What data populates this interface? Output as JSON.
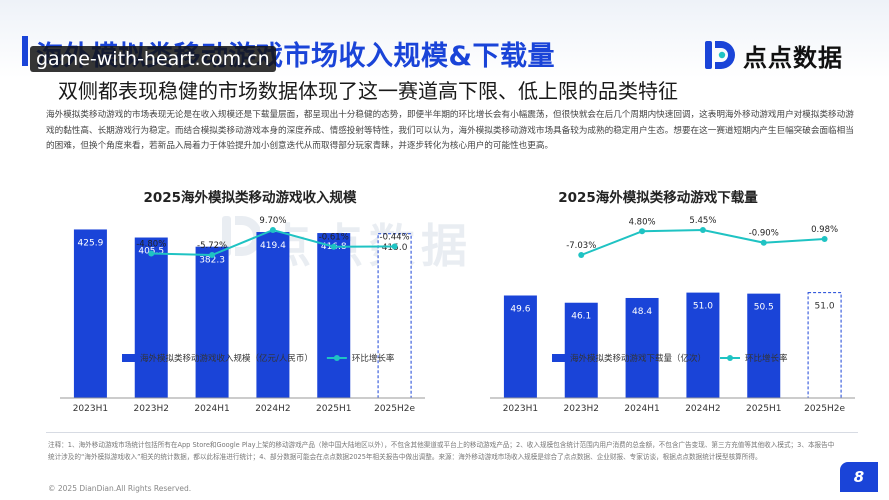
{
  "header": {
    "title": "海外模拟类移动游戏市场收入规模&下载量",
    "subtitle": "双侧都表现稳健的市场数据体现了这一赛道高下限、低上限的品类特征",
    "watermark_url": "game-with-heart.com.cn"
  },
  "brand": {
    "name": "点点数据",
    "watermark": "点点数据"
  },
  "intro_text": "海外模拟类移动游戏的市场表现无论是在收入规模还是下载量层面，都呈现出十分稳健的态势，即便半年期的环比增长会有小幅震荡，但很快就会在后几个周期内快速回调，这表明海外移动游戏用户对模拟类移动游戏的黏性高、长期游戏行为稳定。而结合模拟类移动游戏本身的深度养成、情感投射等特性，我们可以认为，海外模拟类移动游戏市场具备较为成熟的稳定用户生态。想要在这一赛道短期内产生巨幅突破会面临相当的困难，但换个角度来看，若新品入局着力于体验提升加小创意迭代从而取得部分玩家青睐，并逐步转化为核心用户的可能性也更高。",
  "chart_data": [
    {
      "type": "bar",
      "title": "2025海外模拟类移动游戏收入规模",
      "categories": [
        "2023H1",
        "2023H2",
        "2024H1",
        "2024H2",
        "2025H1",
        "2025H2e"
      ],
      "series": [
        {
          "name": "海外模拟类移动游戏收入规模（亿元/人民币）",
          "values": [
            425.9,
            405.5,
            382.3,
            419.4,
            416.8,
            415.0
          ],
          "estimated_last": true,
          "color": "#1a44d8"
        },
        {
          "name": "环比增长率",
          "type": "line",
          "values": [
            null,
            -4.8,
            -5.72,
            9.7,
            -0.61,
            -0.44
          ],
          "labels": [
            "",
            "-4.80%",
            "-5.72%",
            "9.70%",
            "-0.61%",
            "-0.44%"
          ],
          "color": "#1fc3c3"
        }
      ],
      "ylim": [
        0,
        470
      ],
      "legend": "bottom"
    },
    {
      "type": "bar",
      "title": "2025海外模拟类移动游戏下载量",
      "categories": [
        "2023H1",
        "2023H2",
        "2024H1",
        "2024H2",
        "2025H1",
        "2025H2e"
      ],
      "series": [
        {
          "name": "海外模拟类移动游戏下载量（亿次）",
          "values": [
            49.6,
            46.1,
            48.4,
            51.0,
            50.5,
            51.0
          ],
          "estimated_last": true,
          "color": "#1a44d8"
        },
        {
          "name": "环比增长率",
          "type": "line",
          "values": [
            null,
            -7.03,
            4.8,
            5.45,
            -0.9,
            0.98
          ],
          "labels": [
            "",
            "-7.03%",
            "4.80%",
            "5.45%",
            "-0.90%",
            "0.98%"
          ],
          "color": "#1fc3c3"
        }
      ],
      "ylim": [
        0,
        90
      ],
      "legend": "bottom"
    }
  ],
  "footnote": "注释：1、海外移动游戏市场统计包括所有在App Store和Google Play上架的移动游戏产品（除中国大陆地区以外），不包含其他渠道或平台上的移动游戏产品；2、收入规模包含统计范围内用户消费的总金额，不包含广告变现、第三方充值等其他收入模式；3、本报告中统计涉及的“海外模拟游戏收入”相关的统计数据，都以此标准进行统计；4、部分数据可能会在点点数据2025年相关报告中做出调整。来源：海外移动游戏市场收入规模是综合了点点数据、企业财报、专家访谈，根据点点数据统计模型核算所得。",
  "copyright": "© 2025 DianDian.All Rights Reserved.",
  "page_number": "8",
  "colors": {
    "accent": "#1a44d8",
    "line": "#1fc3c3"
  }
}
